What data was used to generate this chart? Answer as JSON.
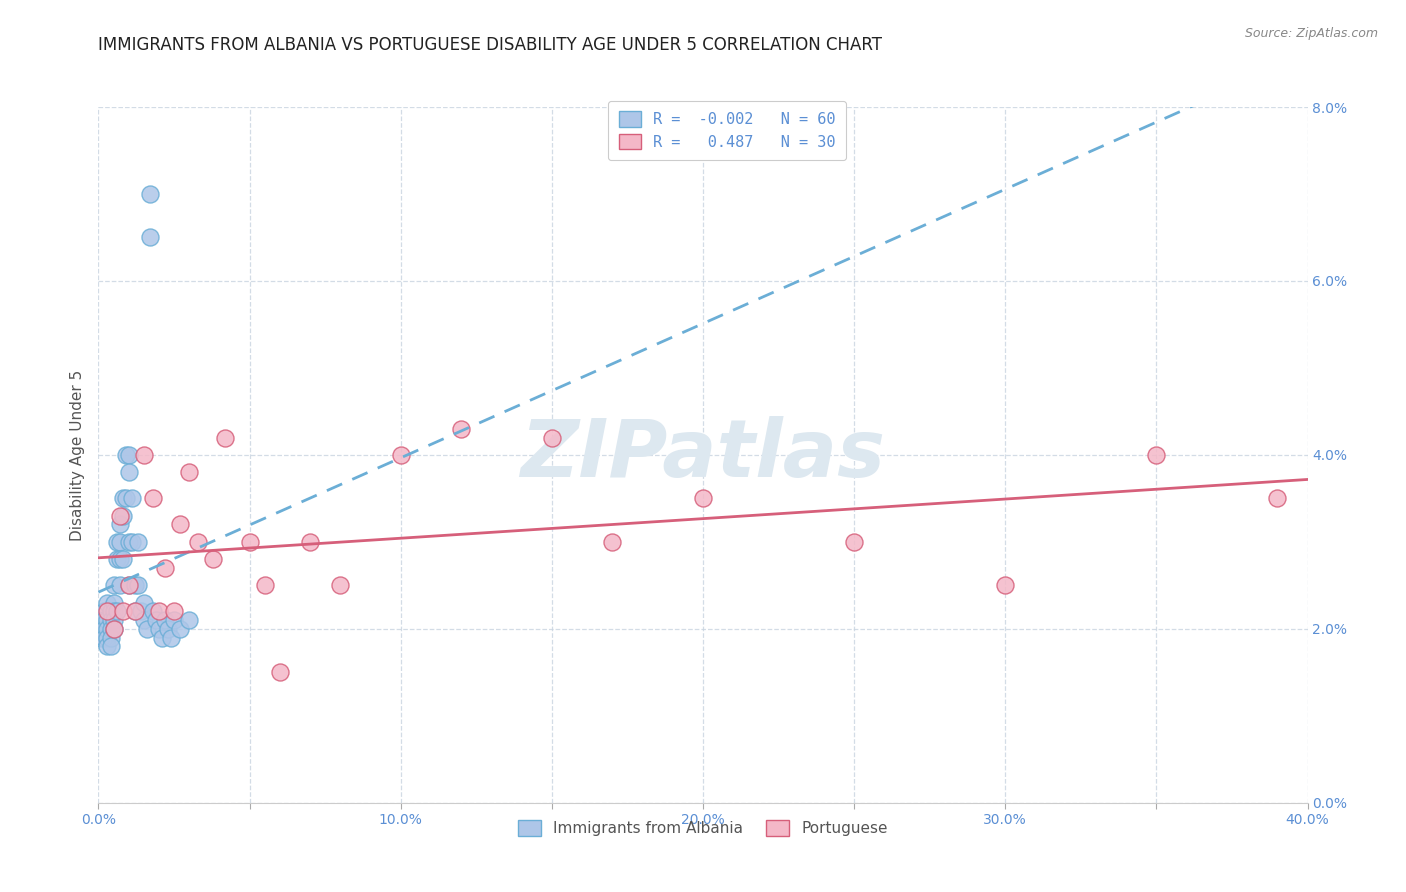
{
  "title": "IMMIGRANTS FROM ALBANIA VS PORTUGUESE DISABILITY AGE UNDER 5 CORRELATION CHART",
  "source": "Source: ZipAtlas.com",
  "ylabel": "Disability Age Under 5",
  "xlim": [
    0.0,
    0.4
  ],
  "ylim": [
    0.0,
    0.08
  ],
  "xticks": [
    0.0,
    0.05,
    0.1,
    0.15,
    0.2,
    0.25,
    0.3,
    0.35,
    0.4
  ],
  "yticks": [
    0.0,
    0.02,
    0.04,
    0.06,
    0.08
  ],
  "xticklabels": [
    "0.0%",
    "",
    "10.0%",
    "",
    "20.0%",
    "",
    "30.0%",
    "",
    "40.0%"
  ],
  "yticklabels": [
    "0.0%",
    "2.0%",
    "4.0%",
    "6.0%",
    "8.0%"
  ],
  "albania": {
    "name": "Immigrants from Albania",
    "R": -0.002,
    "N": 60,
    "color": "#aec6e8",
    "edge_color": "#6baed6",
    "line_color": "#6baed6",
    "line_style": "dashed",
    "x": [
      0.001,
      0.001,
      0.001,
      0.002,
      0.002,
      0.002,
      0.002,
      0.003,
      0.003,
      0.003,
      0.003,
      0.003,
      0.004,
      0.004,
      0.004,
      0.004,
      0.004,
      0.005,
      0.005,
      0.005,
      0.005,
      0.005,
      0.006,
      0.006,
      0.006,
      0.007,
      0.007,
      0.007,
      0.007,
      0.008,
      0.008,
      0.008,
      0.009,
      0.009,
      0.01,
      0.01,
      0.01,
      0.01,
      0.011,
      0.011,
      0.012,
      0.012,
      0.013,
      0.013,
      0.014,
      0.015,
      0.015,
      0.016,
      0.017,
      0.017,
      0.018,
      0.019,
      0.02,
      0.021,
      0.022,
      0.023,
      0.024,
      0.025,
      0.027,
      0.03
    ],
    "y": [
      0.021,
      0.02,
      0.019,
      0.022,
      0.021,
      0.02,
      0.019,
      0.023,
      0.021,
      0.02,
      0.019,
      0.018,
      0.022,
      0.021,
      0.02,
      0.019,
      0.018,
      0.025,
      0.023,
      0.022,
      0.021,
      0.02,
      0.03,
      0.028,
      0.022,
      0.032,
      0.03,
      0.028,
      0.025,
      0.035,
      0.033,
      0.028,
      0.04,
      0.035,
      0.04,
      0.038,
      0.03,
      0.025,
      0.035,
      0.03,
      0.025,
      0.022,
      0.03,
      0.025,
      0.022,
      0.023,
      0.021,
      0.02,
      0.07,
      0.065,
      0.022,
      0.021,
      0.02,
      0.019,
      0.021,
      0.02,
      0.019,
      0.021,
      0.02,
      0.021
    ]
  },
  "portuguese": {
    "name": "Portuguese",
    "R": 0.487,
    "N": 30,
    "color": "#f4b8c8",
    "edge_color": "#d65f7a",
    "line_color": "#d65f7a",
    "line_style": "solid",
    "x": [
      0.003,
      0.005,
      0.007,
      0.008,
      0.01,
      0.012,
      0.015,
      0.018,
      0.02,
      0.022,
      0.025,
      0.027,
      0.03,
      0.033,
      0.038,
      0.042,
      0.05,
      0.055,
      0.06,
      0.07,
      0.08,
      0.1,
      0.12,
      0.15,
      0.17,
      0.2,
      0.25,
      0.3,
      0.35,
      0.39
    ],
    "y": [
      0.022,
      0.02,
      0.033,
      0.022,
      0.025,
      0.022,
      0.04,
      0.035,
      0.022,
      0.027,
      0.022,
      0.032,
      0.038,
      0.03,
      0.028,
      0.042,
      0.03,
      0.025,
      0.015,
      0.03,
      0.025,
      0.04,
      0.043,
      0.042,
      0.03,
      0.035,
      0.03,
      0.025,
      0.04,
      0.035
    ]
  },
  "watermark": "ZIPatlas",
  "watermark_color": "#dde8f0",
  "background_color": "#ffffff",
  "grid_color": "#c8d4e0",
  "title_fontsize": 12,
  "axis_fontsize": 11,
  "tick_fontsize": 10,
  "legend_fontsize": 11,
  "source_fontsize": 9
}
